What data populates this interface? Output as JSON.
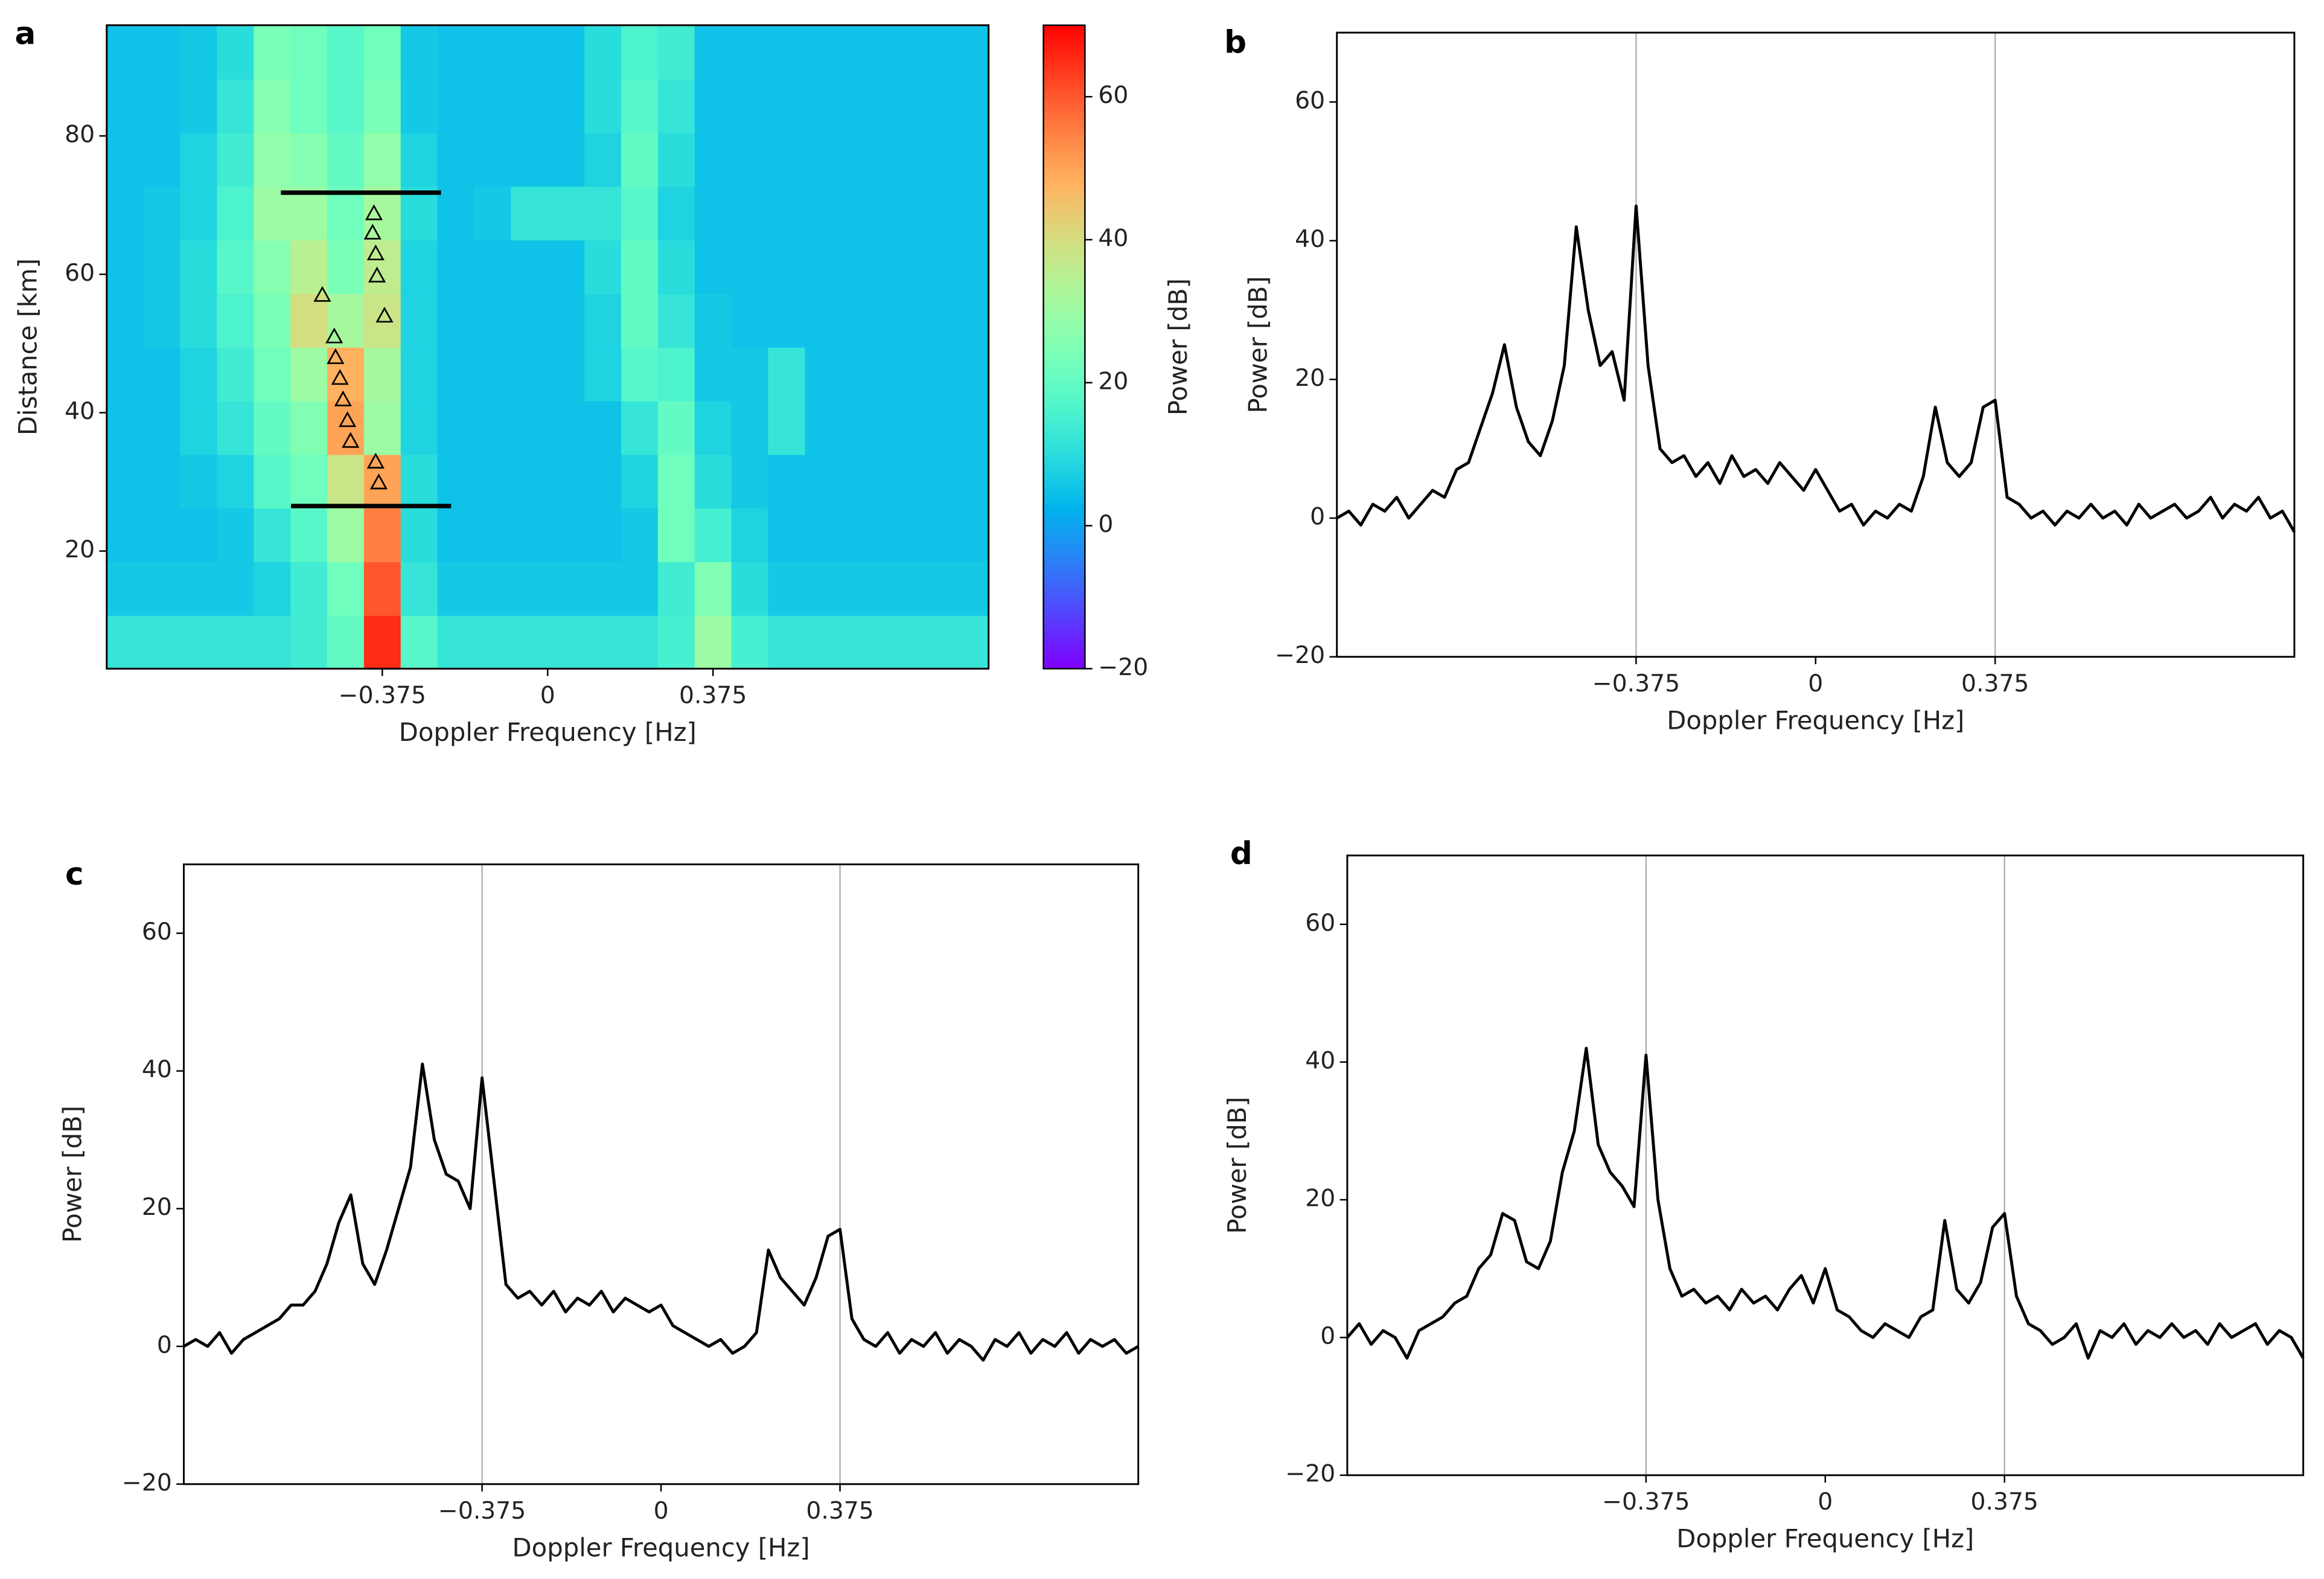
{
  "chart_data": [
    {
      "type": "heatmap",
      "label": "a",
      "xlabel": "Doppler Frequency [Hz]",
      "ylabel": "Distance [km]",
      "xlim": [
        -1,
        1
      ],
      "ylim": [
        3,
        96
      ],
      "xticks": [
        {
          "value": -0.375,
          "label": "−0.375"
        },
        0,
        0.375
      ],
      "yticks": [
        20,
        40,
        60,
        80
      ],
      "colormap": "rainbow",
      "clim": [
        -20,
        70
      ],
      "cticks": [
        {
          "value": -20,
          "label": "−20"
        },
        0,
        20,
        40,
        60
      ],
      "clabel": "Power [dB]",
      "z": [
        [
          12,
          12,
          12,
          12,
          12,
          14,
          20,
          65,
          18,
          12,
          12,
          12,
          12,
          12,
          12,
          15,
          30,
          15,
          12,
          12,
          12,
          12,
          12,
          12
        ],
        [
          6,
          6,
          6,
          6,
          8,
          14,
          22,
          60,
          12,
          6,
          6,
          6,
          6,
          6,
          6,
          14,
          25,
          10,
          6,
          6,
          6,
          6,
          6,
          6
        ],
        [
          5,
          5,
          5,
          6,
          12,
          18,
          30,
          55,
          10,
          5,
          5,
          5,
          5,
          5,
          6,
          22,
          15,
          8,
          5,
          5,
          5,
          5,
          5,
          5
        ],
        [
          5,
          5,
          6,
          8,
          18,
          22,
          38,
          50,
          10,
          5,
          5,
          5,
          5,
          5,
          8,
          22,
          10,
          6,
          5,
          5,
          5,
          5,
          5,
          5
        ],
        [
          5,
          5,
          8,
          12,
          20,
          25,
          50,
          30,
          8,
          5,
          5,
          5,
          5,
          5,
          12,
          20,
          8,
          6,
          12,
          5,
          5,
          5,
          5,
          5
        ],
        [
          5,
          5,
          8,
          14,
          22,
          30,
          48,
          32,
          8,
          5,
          5,
          5,
          5,
          8,
          18,
          16,
          6,
          6,
          12,
          5,
          5,
          5,
          5,
          5
        ],
        [
          5,
          6,
          10,
          16,
          24,
          40,
          32,
          38,
          8,
          5,
          5,
          5,
          5,
          8,
          20,
          12,
          6,
          5,
          5,
          5,
          5,
          5,
          5,
          5
        ],
        [
          5,
          6,
          10,
          18,
          26,
          35,
          24,
          36,
          8,
          5,
          5,
          5,
          5,
          10,
          20,
          10,
          5,
          5,
          5,
          5,
          5,
          5,
          5,
          5
        ],
        [
          5,
          6,
          8,
          16,
          30,
          30,
          22,
          32,
          10,
          5,
          6,
          12,
          12,
          12,
          18,
          8,
          5,
          5,
          5,
          5,
          5,
          5,
          5,
          5
        ],
        [
          5,
          5,
          8,
          14,
          28,
          26,
          20,
          28,
          8,
          5,
          5,
          5,
          5,
          8,
          20,
          10,
          5,
          5,
          5,
          5,
          5,
          5,
          5,
          5
        ],
        [
          5,
          5,
          6,
          12,
          26,
          22,
          18,
          24,
          6,
          5,
          5,
          5,
          5,
          10,
          18,
          12,
          5,
          5,
          5,
          5,
          5,
          5,
          5,
          5
        ],
        [
          5,
          5,
          6,
          10,
          24,
          22,
          18,
          22,
          6,
          5,
          5,
          5,
          5,
          10,
          16,
          14,
          5,
          5,
          5,
          5,
          5,
          5,
          5,
          5
        ]
      ],
      "lines": [
        {
          "x": [
            -0.605,
            -0.242
          ],
          "y": 71.8,
          "color": "#000000"
        },
        {
          "x": [
            -0.582,
            -0.219
          ],
          "y": 26.5,
          "color": "#000000"
        }
      ],
      "markers": {
        "x": [
          -0.394,
          -0.397,
          -0.39,
          -0.387,
          -0.37,
          -0.511,
          -0.484,
          -0.481,
          -0.471,
          -0.464,
          -0.454,
          -0.447,
          -0.39,
          -0.383
        ],
        "y": [
          68.8,
          66.0,
          63.0,
          59.8,
          54.0,
          57.0,
          51.0,
          48.0,
          45.0,
          41.9,
          38.9,
          35.9,
          32.9,
          29.9
        ]
      }
    },
    {
      "type": "line",
      "label": "b",
      "xlabel": "Doppler Frequency [Hz]",
      "ylabel": "Power [dB]",
      "xlim": [
        -1,
        1
      ],
      "ylim": [
        -20,
        70
      ],
      "xticks": [
        {
          "value": -0.375,
          "label": "−0.375"
        },
        0,
        0.375
      ],
      "yticks": [
        {
          "value": -20,
          "label": "−20"
        },
        0,
        20,
        40,
        60
      ],
      "vlines": [
        -0.375,
        0.375
      ],
      "vline_color": "#aaaaaa",
      "x": [
        -1,
        -0.975,
        -0.95,
        -0.925,
        -0.9,
        -0.875,
        -0.85,
        -0.825,
        -0.8,
        -0.775,
        -0.75,
        -0.725,
        -0.7,
        -0.675,
        -0.65,
        -0.625,
        -0.6,
        -0.575,
        -0.55,
        -0.525,
        -0.5,
        -0.475,
        -0.45,
        -0.425,
        -0.4,
        -0.375,
        -0.35,
        -0.325,
        -0.3,
        -0.275,
        -0.25,
        -0.225,
        -0.2,
        -0.175,
        -0.15,
        -0.125,
        -0.1,
        -0.075,
        -0.05,
        -0.025,
        0,
        0.025,
        0.05,
        0.075,
        0.1,
        0.125,
        0.15,
        0.175,
        0.2,
        0.225,
        0.25,
        0.275,
        0.3,
        0.325,
        0.35,
        0.375,
        0.4,
        0.425,
        0.45,
        0.475,
        0.5,
        0.525,
        0.55,
        0.575,
        0.6,
        0.625,
        0.65,
        0.675,
        0.7,
        0.725,
        0.75,
        0.775,
        0.8,
        0.825,
        0.85,
        0.875,
        0.9,
        0.925,
        0.95,
        0.975,
        1
      ],
      "series": [
        {
          "color": "#000000",
          "values": [
            0,
            1,
            -1,
            2,
            1,
            3,
            0,
            2,
            4,
            3,
            7,
            8,
            13,
            18,
            25,
            16,
            11,
            9,
            14,
            22,
            42,
            30,
            22,
            24,
            17,
            45,
            22,
            10,
            8,
            9,
            6,
            8,
            5,
            9,
            6,
            7,
            5,
            8,
            6,
            4,
            7,
            4,
            1,
            2,
            -1,
            1,
            0,
            2,
            1,
            6,
            16,
            8,
            6,
            8,
            16,
            17,
            3,
            2,
            0,
            1,
            -1,
            1,
            0,
            2,
            0,
            1,
            -1,
            2,
            0,
            1,
            2,
            0,
            1,
            3,
            0,
            2,
            1,
            3,
            0,
            1,
            -2
          ]
        }
      ]
    },
    {
      "type": "line",
      "label": "c",
      "xlabel": "Doppler Frequency [Hz]",
      "ylabel": "Power [dB]",
      "xlim": [
        -1,
        1
      ],
      "ylim": [
        -20,
        70
      ],
      "xticks": [
        {
          "value": -0.375,
          "label": "−0.375"
        },
        0,
        0.375
      ],
      "yticks": [
        {
          "value": -20,
          "label": "−20"
        },
        0,
        20,
        40,
        60
      ],
      "vlines": [
        -0.375,
        0.375
      ],
      "vline_color": "#aaaaaa",
      "x": [
        -1,
        -0.975,
        -0.95,
        -0.925,
        -0.9,
        -0.875,
        -0.85,
        -0.825,
        -0.8,
        -0.775,
        -0.75,
        -0.725,
        -0.7,
        -0.675,
        -0.65,
        -0.625,
        -0.6,
        -0.575,
        -0.55,
        -0.525,
        -0.5,
        -0.475,
        -0.45,
        -0.425,
        -0.4,
        -0.375,
        -0.35,
        -0.325,
        -0.3,
        -0.275,
        -0.25,
        -0.225,
        -0.2,
        -0.175,
        -0.15,
        -0.125,
        -0.1,
        -0.075,
        -0.05,
        -0.025,
        0,
        0.025,
        0.05,
        0.075,
        0.1,
        0.125,
        0.15,
        0.175,
        0.2,
        0.225,
        0.25,
        0.275,
        0.3,
        0.325,
        0.35,
        0.375,
        0.4,
        0.425,
        0.45,
        0.475,
        0.5,
        0.525,
        0.55,
        0.575,
        0.6,
        0.625,
        0.65,
        0.675,
        0.7,
        0.725,
        0.75,
        0.775,
        0.8,
        0.825,
        0.85,
        0.875,
        0.9,
        0.925,
        0.95,
        0.975,
        1
      ],
      "series": [
        {
          "color": "#000000",
          "values": [
            0,
            1,
            0,
            2,
            -1,
            1,
            2,
            3,
            4,
            6,
            6,
            8,
            12,
            18,
            22,
            12,
            9,
            14,
            20,
            26,
            41,
            30,
            25,
            24,
            20,
            39,
            24,
            9,
            7,
            8,
            6,
            8,
            5,
            7,
            6,
            8,
            5,
            7,
            6,
            5,
            6,
            3,
            2,
            1,
            0,
            1,
            -1,
            0,
            2,
            14,
            10,
            8,
            6,
            10,
            16,
            17,
            4,
            1,
            0,
            2,
            -1,
            1,
            0,
            2,
            -1,
            1,
            0,
            -2,
            1,
            0,
            2,
            -1,
            1,
            0,
            2,
            -1,
            1,
            0,
            1,
            -1,
            0
          ]
        }
      ]
    },
    {
      "type": "line",
      "label": "d",
      "xlabel": "Doppler Frequency [Hz]",
      "ylabel": "Power [dB]",
      "xlim": [
        -1,
        1
      ],
      "ylim": [
        -20,
        70
      ],
      "xticks": [
        {
          "value": -0.375,
          "label": "−0.375"
        },
        0,
        0.375
      ],
      "yticks": [
        {
          "value": -20,
          "label": "−20"
        },
        0,
        20,
        40,
        60
      ],
      "vlines": [
        -0.375,
        0.375
      ],
      "vline_color": "#aaaaaa",
      "x": [
        -1,
        -0.975,
        -0.95,
        -0.925,
        -0.9,
        -0.875,
        -0.85,
        -0.825,
        -0.8,
        -0.775,
        -0.75,
        -0.725,
        -0.7,
        -0.675,
        -0.65,
        -0.625,
        -0.6,
        -0.575,
        -0.55,
        -0.525,
        -0.5,
        -0.475,
        -0.45,
        -0.425,
        -0.4,
        -0.375,
        -0.35,
        -0.325,
        -0.3,
        -0.275,
        -0.25,
        -0.225,
        -0.2,
        -0.175,
        -0.15,
        -0.125,
        -0.1,
        -0.075,
        -0.05,
        -0.025,
        0,
        0.025,
        0.05,
        0.075,
        0.1,
        0.125,
        0.15,
        0.175,
        0.2,
        0.225,
        0.25,
        0.275,
        0.3,
        0.325,
        0.35,
        0.375,
        0.4,
        0.425,
        0.45,
        0.475,
        0.5,
        0.525,
        0.55,
        0.575,
        0.6,
        0.625,
        0.65,
        0.675,
        0.7,
        0.725,
        0.75,
        0.775,
        0.8,
        0.825,
        0.85,
        0.875,
        0.9,
        0.925,
        0.95,
        0.975,
        1
      ],
      "series": [
        {
          "color": "#000000",
          "values": [
            0,
            2,
            -1,
            1,
            0,
            -3,
            1,
            2,
            3,
            5,
            6,
            10,
            12,
            18,
            17,
            11,
            10,
            14,
            24,
            30,
            42,
            28,
            24,
            22,
            19,
            41,
            20,
            10,
            6,
            7,
            5,
            6,
            4,
            7,
            5,
            6,
            4,
            7,
            9,
            5,
            10,
            4,
            3,
            1,
            0,
            2,
            1,
            0,
            3,
            4,
            17,
            7,
            5,
            8,
            16,
            18,
            6,
            2,
            1,
            -1,
            0,
            2,
            -3,
            1,
            0,
            2,
            -1,
            1,
            0,
            2,
            0,
            1,
            -1,
            2,
            0,
            1,
            2,
            -1,
            1,
            0,
            -3
          ]
        }
      ]
    }
  ]
}
